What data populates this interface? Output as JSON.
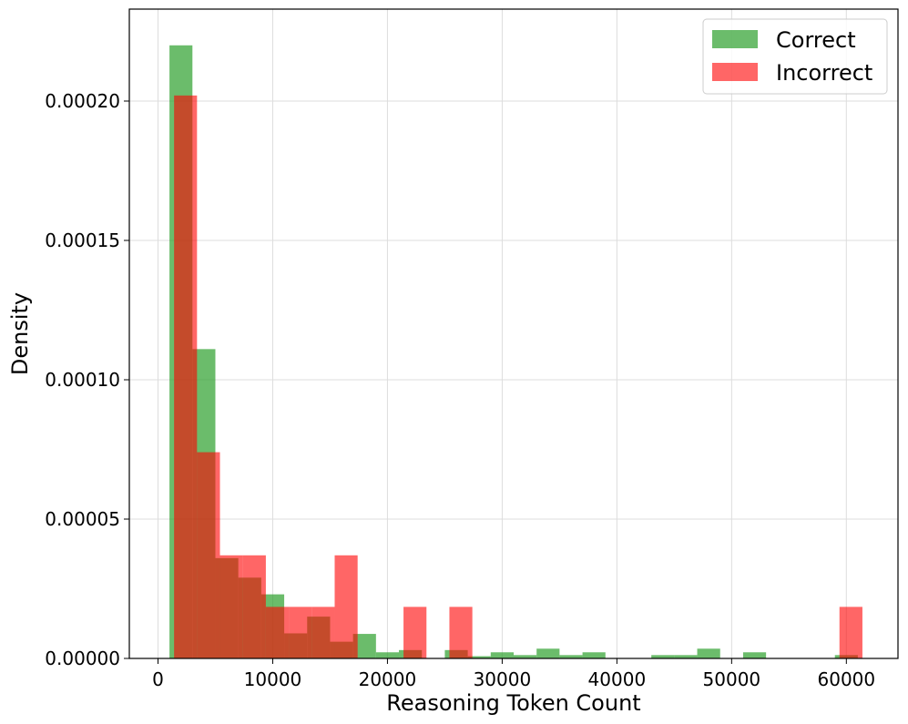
{
  "chart_data": {
    "type": "bar",
    "xlabel": "Reasoning Token Count",
    "ylabel": "Density",
    "xlim": [
      -2500,
      64500
    ],
    "ylim": [
      0,
      0.000233
    ],
    "xticks": [
      0,
      10000,
      20000,
      30000,
      40000,
      50000,
      60000
    ],
    "xtick_labels": [
      "0",
      "10000",
      "20000",
      "30000",
      "40000",
      "50000",
      "60000"
    ],
    "yticks": [
      0,
      5e-05,
      0.0001,
      0.00015,
      0.0002
    ],
    "ytick_labels": [
      "0.00000",
      "0.00005",
      "0.00010",
      "0.00015",
      "0.00020"
    ],
    "grid": true,
    "legend_position": "top-right",
    "series": [
      {
        "name": "Correct",
        "color": "#2ca02c",
        "opacity": 0.7,
        "bins": [
          {
            "x0": 1000,
            "x1": 3000,
            "density": 0.00022
          },
          {
            "x0": 3000,
            "x1": 5000,
            "density": 0.000111
          },
          {
            "x0": 5000,
            "x1": 7000,
            "density": 3.6e-05
          },
          {
            "x0": 7000,
            "x1": 9000,
            "density": 2.9e-05
          },
          {
            "x0": 9000,
            "x1": 11000,
            "density": 2.3e-05
          },
          {
            "x0": 11000,
            "x1": 13000,
            "density": 9e-06
          },
          {
            "x0": 13000,
            "x1": 15000,
            "density": 1.5e-05
          },
          {
            "x0": 15000,
            "x1": 17000,
            "density": 6e-06
          },
          {
            "x0": 17000,
            "x1": 19000,
            "density": 8.8e-06
          },
          {
            "x0": 19000,
            "x1": 21000,
            "density": 2.2e-06
          },
          {
            "x0": 21000,
            "x1": 23000,
            "density": 3e-06
          },
          {
            "x0": 23000,
            "x1": 25000,
            "density": 0
          },
          {
            "x0": 25000,
            "x1": 27000,
            "density": 3e-06
          },
          {
            "x0": 27000,
            "x1": 29000,
            "density": 8e-07
          },
          {
            "x0": 29000,
            "x1": 31000,
            "density": 2.2e-06
          },
          {
            "x0": 31000,
            "x1": 33000,
            "density": 1.2e-06
          },
          {
            "x0": 33000,
            "x1": 35000,
            "density": 3.5e-06
          },
          {
            "x0": 35000,
            "x1": 37000,
            "density": 1.2e-06
          },
          {
            "x0": 37000,
            "x1": 39000,
            "density": 2.2e-06
          },
          {
            "x0": 39000,
            "x1": 41000,
            "density": 0
          },
          {
            "x0": 41000,
            "x1": 43000,
            "density": 0
          },
          {
            "x0": 43000,
            "x1": 45000,
            "density": 1.2e-06
          },
          {
            "x0": 45000,
            "x1": 47000,
            "density": 1.2e-06
          },
          {
            "x0": 47000,
            "x1": 49000,
            "density": 3.5e-06
          },
          {
            "x0": 49000,
            "x1": 51000,
            "density": 0
          },
          {
            "x0": 51000,
            "x1": 53000,
            "density": 2.2e-06
          },
          {
            "x0": 53000,
            "x1": 55000,
            "density": 0
          },
          {
            "x0": 55000,
            "x1": 57000,
            "density": 0
          },
          {
            "x0": 57000,
            "x1": 59000,
            "density": 0
          },
          {
            "x0": 59000,
            "x1": 61000,
            "density": 1.2e-06
          }
        ]
      },
      {
        "name": "Incorrect",
        "color": "#ff0000",
        "opacity": 0.6,
        "bins": [
          {
            "x0": 1400,
            "x1": 3400,
            "density": 0.000202
          },
          {
            "x0": 3400,
            "x1": 5400,
            "density": 7.4e-05
          },
          {
            "x0": 5400,
            "x1": 7400,
            "density": 3.7e-05
          },
          {
            "x0": 7400,
            "x1": 9400,
            "density": 3.7e-05
          },
          {
            "x0": 9400,
            "x1": 11400,
            "density": 1.85e-05
          },
          {
            "x0": 11400,
            "x1": 13400,
            "density": 1.85e-05
          },
          {
            "x0": 13400,
            "x1": 15400,
            "density": 1.85e-05
          },
          {
            "x0": 15400,
            "x1": 17400,
            "density": 3.7e-05
          },
          {
            "x0": 17400,
            "x1": 19400,
            "density": 0
          },
          {
            "x0": 19400,
            "x1": 21400,
            "density": 0
          },
          {
            "x0": 21400,
            "x1": 23400,
            "density": 1.85e-05
          },
          {
            "x0": 23400,
            "x1": 25400,
            "density": 0
          },
          {
            "x0": 25400,
            "x1": 27400,
            "density": 1.85e-05
          },
          {
            "x0": 59400,
            "x1": 61400,
            "density": 1.85e-05
          }
        ]
      }
    ]
  }
}
